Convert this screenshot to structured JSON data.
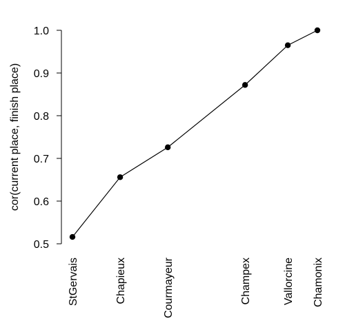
{
  "chart_data": {
    "type": "line",
    "ylabel": "cor(current place, finish place)",
    "x_categories": [
      "StGervais",
      "Chapieux",
      "Courmayeur",
      "Champex",
      "Vallorcine",
      "Chamonix"
    ],
    "x_positions": [
      21,
      50,
      79,
      126,
      152,
      170
    ],
    "y": [
      0.516,
      0.656,
      0.726,
      0.872,
      0.965,
      1.0
    ],
    "ylim": [
      0.5,
      1.0
    ],
    "yticks": [
      "0.5",
      "0.6",
      "0.7",
      "0.8",
      "0.9",
      "1.0"
    ],
    "grid": false,
    "line_color": "#000000",
    "marker": "filled-circle"
  }
}
